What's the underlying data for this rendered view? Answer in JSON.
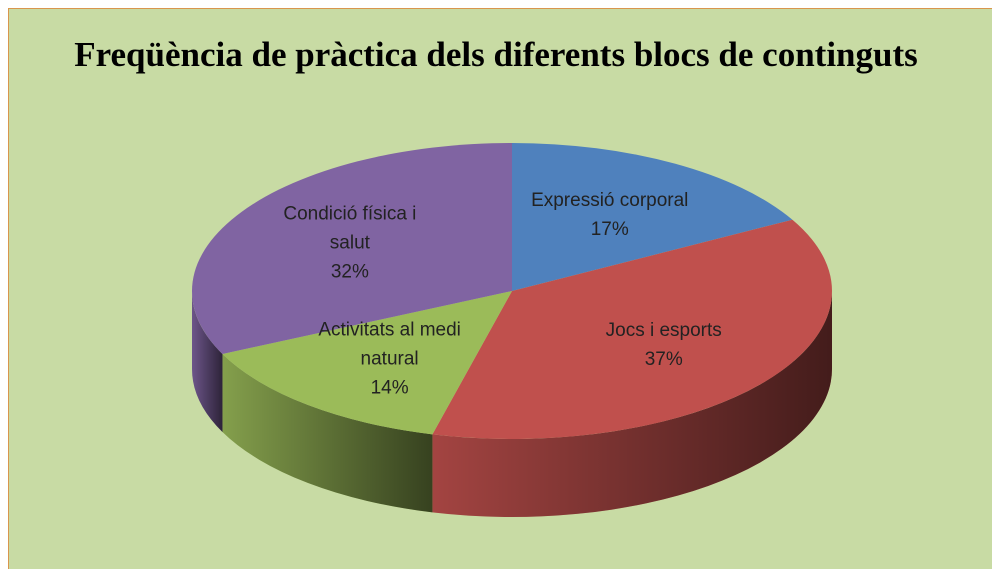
{
  "chart_data": {
    "type": "pie3d",
    "title": "Freqüència de pràctica dels diferents blocs de continguts",
    "categories": [
      "Expressió corporal",
      "Jocs i esports",
      "Activitats al medi natural",
      "Condició física i salut"
    ],
    "values": [
      17,
      37,
      14,
      32
    ],
    "value_labels": [
      "17%",
      "37%",
      "14%",
      "32%"
    ],
    "colors": [
      "#4f81bd",
      "#c0504d",
      "#9bbb59",
      "#8064a2"
    ]
  }
}
